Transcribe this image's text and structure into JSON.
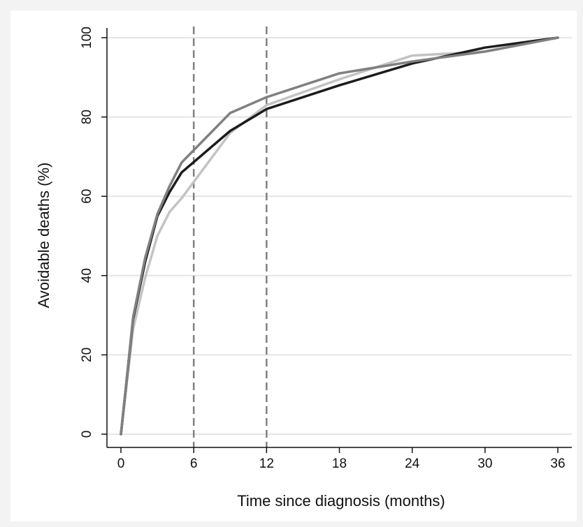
{
  "chart_data": {
    "type": "line",
    "title": "",
    "xlabel": "Time since diagnosis (months)",
    "ylabel": "Avoidable deaths (%)",
    "xlim": [
      0,
      36
    ],
    "ylim": [
      0,
      100
    ],
    "xticks": [
      0,
      6,
      12,
      18,
      24,
      30,
      36
    ],
    "yticks": [
      0,
      20,
      40,
      60,
      80,
      100
    ],
    "grid": true,
    "legend": "none",
    "vertical_reference_lines": [
      6,
      12
    ],
    "series": [
      {
        "color": "#c3c3c3",
        "x": [
          0,
          1,
          2,
          3,
          4,
          5,
          9,
          12,
          18,
          24,
          30,
          36
        ],
        "y": [
          0,
          26.5,
          39.5,
          50,
          56,
          59.5,
          76,
          83,
          89.5,
          95.5,
          96.5,
          100
        ]
      },
      {
        "color": "#1c1c1c",
        "x": [
          0,
          1,
          2,
          3,
          4,
          5,
          9,
          12,
          18,
          24,
          30,
          36
        ],
        "y": [
          0,
          29,
          43.5,
          55,
          61,
          66,
          76.5,
          82,
          88,
          93.5,
          97.5,
          100
        ]
      },
      {
        "color": "#808080",
        "x": [
          0,
          1,
          2,
          3,
          4,
          5,
          9,
          12,
          18,
          24,
          30,
          36
        ],
        "y": [
          0,
          29.5,
          44.5,
          55.5,
          62.5,
          68.5,
          81,
          85,
          91,
          94,
          96.5,
          100
        ]
      }
    ]
  },
  "colors": {
    "background": "#f3f3f3",
    "plot_background": "#ffffff",
    "grid": "#e5e5e5",
    "axis": "#111111",
    "reference_line": "#808080"
  }
}
